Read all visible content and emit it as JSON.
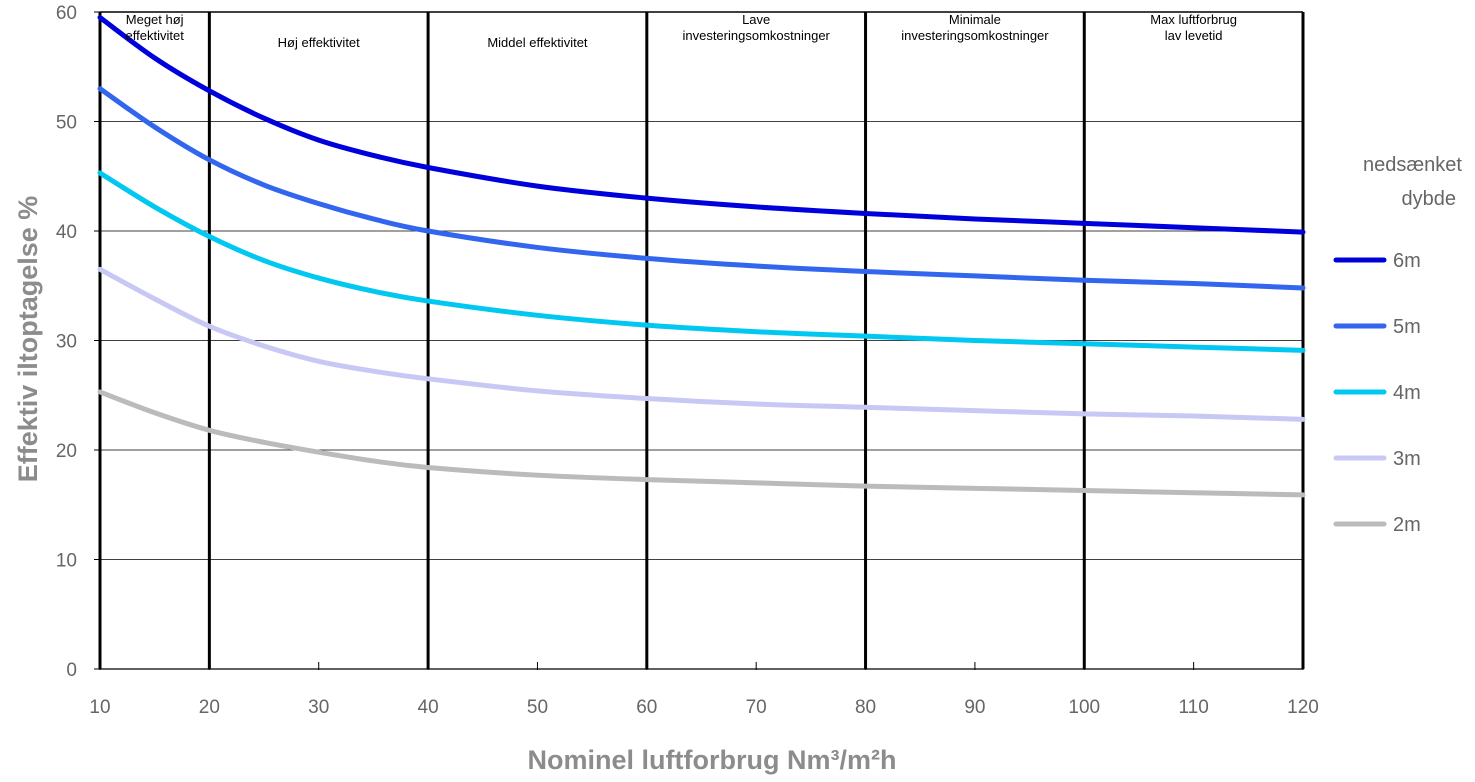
{
  "chart_data": {
    "type": "line",
    "xlabel": "Nominel luftforbrug Nm³/m²h",
    "ylabel": "Effektiv iltoptagelse %",
    "xlim": [
      10,
      120
    ],
    "ylim": [
      0,
      60
    ],
    "xticks": [
      10,
      20,
      30,
      40,
      50,
      60,
      70,
      80,
      90,
      100,
      110,
      120
    ],
    "yticks": [
      0,
      10,
      20,
      30,
      40,
      50,
      60
    ],
    "grid": "horizontal",
    "legend_position": "right",
    "legend_title": [
      "nedsænket",
      "dybde"
    ],
    "regions": [
      {
        "from": 10,
        "to": 20,
        "label": [
          "Meget høj",
          "effektivitet"
        ]
      },
      {
        "from": 20,
        "to": 40,
        "label": [
          "Høj effektivitet"
        ]
      },
      {
        "from": 40,
        "to": 60,
        "label": [
          "Middel effektivitet"
        ]
      },
      {
        "from": 60,
        "to": 80,
        "label": [
          "Lave",
          "investeringsomkostninger"
        ]
      },
      {
        "from": 80,
        "to": 100,
        "label": [
          "Minimale",
          "investeringsomkostninger"
        ]
      },
      {
        "from": 100,
        "to": 120,
        "label": [
          "Max luftforbrug",
          "lav levetid"
        ]
      }
    ],
    "series": [
      {
        "name": "6m",
        "color": "#0000dd",
        "x": [
          10,
          15,
          20,
          25,
          30,
          35,
          40,
          50,
          60,
          70,
          80,
          90,
          100,
          110,
          120
        ],
        "y": [
          59.5,
          55.8,
          52.8,
          50.3,
          48.3,
          46.9,
          45.8,
          44.1,
          43.0,
          42.2,
          41.6,
          41.1,
          40.7,
          40.3,
          39.9
        ]
      },
      {
        "name": "5m",
        "color": "#3366ee",
        "x": [
          10,
          15,
          20,
          25,
          30,
          35,
          40,
          50,
          60,
          70,
          80,
          90,
          100,
          110,
          120
        ],
        "y": [
          53.0,
          49.5,
          46.5,
          44.2,
          42.5,
          41.1,
          40.0,
          38.5,
          37.5,
          36.8,
          36.3,
          35.9,
          35.5,
          35.2,
          34.8
        ]
      },
      {
        "name": "4m",
        "color": "#00c8f0",
        "x": [
          10,
          15,
          20,
          25,
          30,
          35,
          40,
          50,
          60,
          70,
          80,
          90,
          100,
          110,
          120
        ],
        "y": [
          45.3,
          42.2,
          39.5,
          37.3,
          35.7,
          34.5,
          33.6,
          32.3,
          31.4,
          30.8,
          30.4,
          30.0,
          29.7,
          29.4,
          29.1
        ]
      },
      {
        "name": "3m",
        "color": "#c8c8f5",
        "x": [
          10,
          15,
          20,
          25,
          30,
          35,
          40,
          50,
          60,
          70,
          80,
          90,
          100,
          110,
          120
        ],
        "y": [
          36.5,
          33.8,
          31.3,
          29.5,
          28.1,
          27.2,
          26.5,
          25.4,
          24.7,
          24.2,
          23.9,
          23.6,
          23.3,
          23.1,
          22.8
        ]
      },
      {
        "name": "2m",
        "color": "#bbbbbb",
        "x": [
          10,
          15,
          20,
          25,
          30,
          35,
          40,
          50,
          60,
          70,
          80,
          90,
          100,
          110,
          120
        ],
        "y": [
          25.3,
          23.4,
          21.8,
          20.7,
          19.8,
          19.0,
          18.4,
          17.7,
          17.3,
          17.0,
          16.7,
          16.5,
          16.3,
          16.1,
          15.9
        ]
      }
    ]
  }
}
